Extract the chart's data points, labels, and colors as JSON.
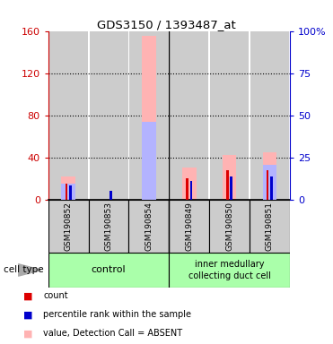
{
  "title": "GDS3150 / 1393487_at",
  "samples": [
    "GSM190852",
    "GSM190853",
    "GSM190854",
    "GSM190849",
    "GSM190850",
    "GSM190851"
  ],
  "value_absent": [
    22,
    0,
    155,
    30,
    42,
    45
  ],
  "rank_absent": [
    15,
    0,
    74,
    0,
    0,
    33
  ],
  "count_red": [
    15,
    0,
    0,
    20,
    28,
    28
  ],
  "percentile_blue": [
    13,
    8,
    0,
    18,
    22,
    22
  ],
  "ylim_left": [
    0,
    160
  ],
  "ylim_right": [
    0,
    100
  ],
  "yticks_left": [
    0,
    40,
    80,
    120,
    160
  ],
  "yticks_right": [
    0,
    25,
    50,
    75,
    100
  ],
  "ytick_labels_right": [
    "0",
    "25",
    "50",
    "75",
    "100%"
  ],
  "color_value_absent": "#ffb3b3",
  "color_rank_absent": "#b3b3ff",
  "color_count": "#dd0000",
  "color_percentile": "#0000cc",
  "color_control_bg": "#aaffaa",
  "color_imcd_bg": "#aaffaa",
  "color_bar_bg": "#cccccc",
  "axis_left_color": "#cc0000",
  "axis_right_color": "#0000cc",
  "grid_dotline_color": "#555555",
  "sep_line_color": "#000000"
}
